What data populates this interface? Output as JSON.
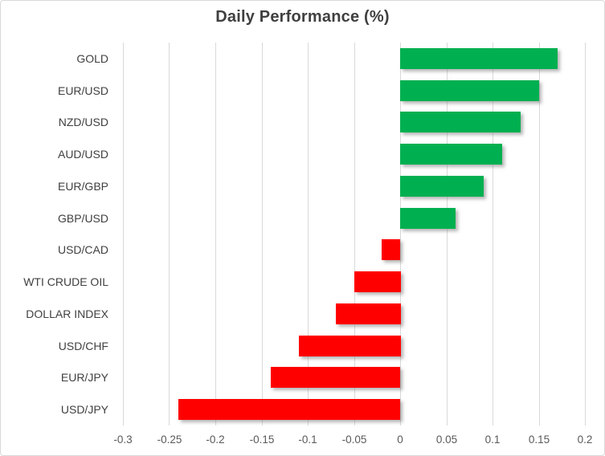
{
  "chart_data": {
    "type": "bar",
    "orientation": "horizontal",
    "title": "Daily Performance (%)",
    "categories": [
      "GOLD",
      "EUR/USD",
      "NZD/USD",
      "AUD/USD",
      "EUR/GBP",
      "GBP/USD",
      "USD/CAD",
      "WTI CRUDE OIL",
      "DOLLAR INDEX",
      "USD/CHF",
      "EUR/JPY",
      "USD/JPY"
    ],
    "values": [
      0.17,
      0.15,
      0.13,
      0.11,
      0.09,
      0.06,
      -0.02,
      -0.05,
      -0.07,
      -0.11,
      -0.14,
      -0.24
    ],
    "xlim": [
      -0.3,
      0.2
    ],
    "x_ticks": [
      -0.3,
      -0.25,
      -0.2,
      -0.15,
      -0.1,
      -0.05,
      0,
      0.05,
      0.1,
      0.15,
      0.2
    ],
    "x_tick_labels": [
      "-0.3",
      "-0.25",
      "-0.2",
      "-0.15",
      "-0.1",
      "-0.05",
      "0",
      "0.05",
      "0.1",
      "0.15",
      "0.2"
    ],
    "grid": true,
    "legend": false,
    "colors": {
      "positive": "#00B050",
      "negative": "#FF0000",
      "gridline": "#D9D9D9",
      "title_text": "#404040",
      "category_text": "#404040",
      "tick_text": "#595959",
      "border": "#D9D9D9",
      "background": "#FFFFFF"
    }
  }
}
